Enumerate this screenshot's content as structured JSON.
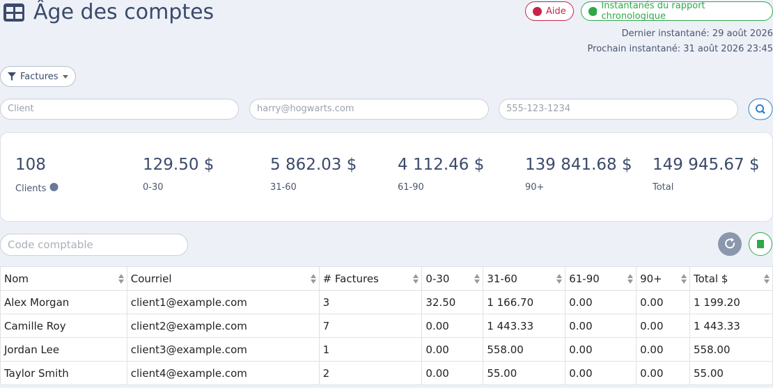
{
  "header": {
    "title": "Âge des comptes",
    "help": "Aide",
    "snapshots": "Instantanés du rapport chronologique",
    "last_snapshot": "Dernier instantané: 29 août 2026",
    "next_snapshot": "Prochain instantané: 31 août 2026 23:45"
  },
  "filter": {
    "label": "Factures"
  },
  "search": {
    "client": "Client",
    "email": "harry@hogwarts.com",
    "phone": "555-123-1234"
  },
  "summary": [
    {
      "value": "108",
      "label": "Clients"
    },
    {
      "value": "129.50 $",
      "label": "0-30"
    },
    {
      "value": "5 862.03 $",
      "label": "31-60"
    },
    {
      "value": "4 112.46 $",
      "label": "61-90"
    },
    {
      "value": "139 841.68 $",
      "label": "90+"
    },
    {
      "value": "149 945.67 $",
      "label": "Total"
    }
  ],
  "account_code": "Code comptable",
  "table": {
    "columns": [
      "Nom",
      "Courriel",
      "# Factures",
      "0-30",
      "31-60",
      "61-90",
      "90+",
      "Total $"
    ],
    "rows": [
      [
        "Alex Morgan",
        "client1@example.com",
        "3",
        "32.50",
        "1 166.70",
        "0.00",
        "0.00",
        "1 199.20"
      ],
      [
        "Camille Roy",
        "client2@example.com",
        "7",
        "0.00",
        "1 443.33",
        "0.00",
        "0.00",
        "1 443.33"
      ],
      [
        "Jordan Lee",
        "client3@example.com",
        "1",
        "0.00",
        "558.00",
        "0.00",
        "0.00",
        "558.00"
      ],
      [
        "Taylor Smith",
        "client4@example.com",
        "2",
        "0.00",
        "55.00",
        "0.00",
        "0.00",
        "55.00"
      ]
    ]
  }
}
